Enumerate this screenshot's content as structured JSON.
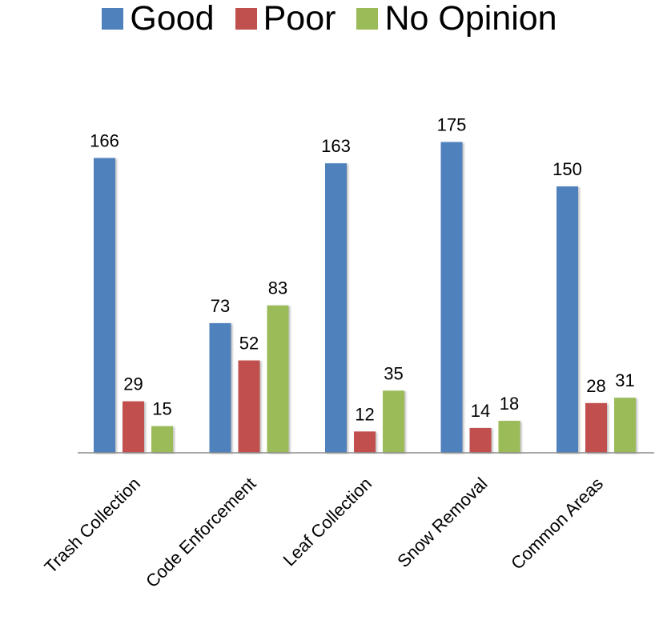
{
  "chart_data": {
    "type": "bar",
    "categories": [
      "Trash Collection",
      "Code Enforcement",
      "Leaf Collection",
      "Snow Removal",
      "Common Areas"
    ],
    "series": [
      {
        "name": "Good",
        "values": [
          166,
          73,
          163,
          175,
          150
        ],
        "color": "#4F81BD"
      },
      {
        "name": "Poor",
        "values": [
          29,
          52,
          12,
          14,
          28
        ],
        "color": "#C0504D"
      },
      {
        "name": "No Opinion",
        "values": [
          15,
          83,
          35,
          18,
          31
        ],
        "color": "#9BBB59"
      }
    ],
    "legend_position": "top",
    "data_labels": true,
    "grid": false,
    "y_axis_visible": false,
    "ylim": [
      0,
      200
    ],
    "x_tick_rotation": -45
  }
}
